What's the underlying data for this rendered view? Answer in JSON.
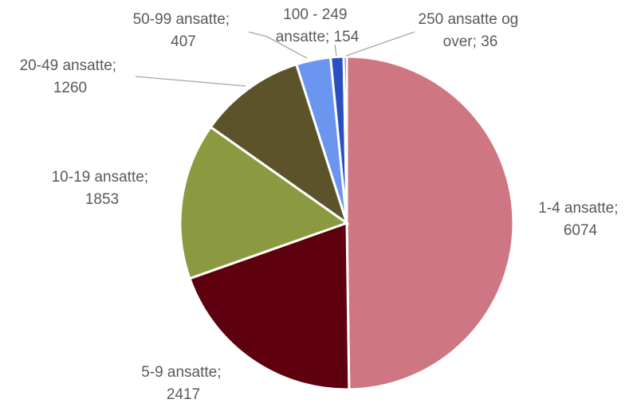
{
  "chart_data": {
    "type": "pie",
    "categories": [
      "1-4 ansatte",
      "5-9 ansatte",
      "10-19 ansatte",
      "20-49 ansatte",
      "50-99 ansatte",
      "100 - 249 ansatte",
      "250 ansatte og over"
    ],
    "values": [
      6074,
      2417,
      1853,
      1260,
      407,
      154,
      36
    ],
    "value_labels": [
      "1-4 ansatte; 6074",
      "5-9 ansatte; 2417",
      "10-19 ansatte; 1853",
      "20-49 ansatte; 1260",
      "50-99 ansatte; 407",
      "100 - 249 ansatte; 154",
      "250 ansatte og over; 36"
    ],
    "colors": [
      "#cf7683",
      "#5e000e",
      "#8b9a40",
      "#5c532a",
      "#6b96f0",
      "#2a4fc0",
      "#1f3f99"
    ]
  }
}
